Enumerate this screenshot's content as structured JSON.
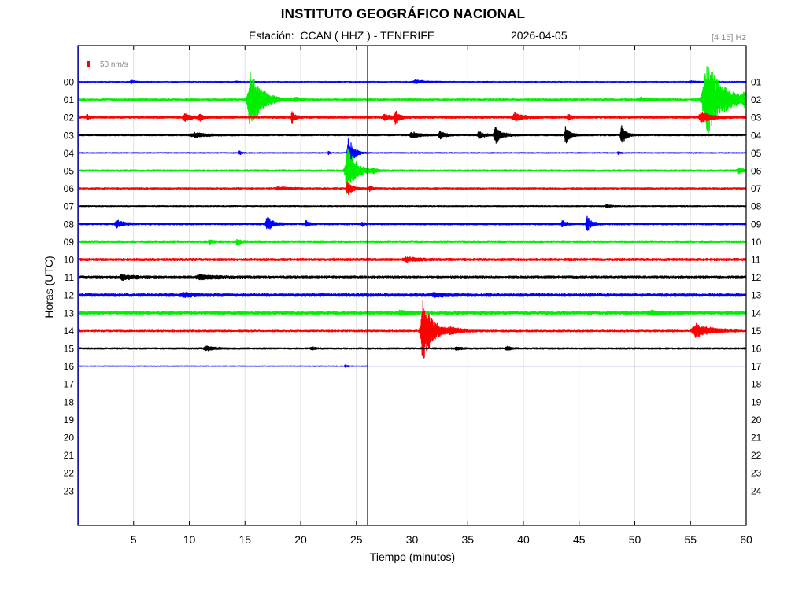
{
  "title": "INSTITUTO GEOGRÁFICO NACIONAL",
  "station_line": "Estación:  CCAN ( HHZ ) - TENERIFE",
  "date": "2026-04-05",
  "filter": "[4 15] Hz",
  "scale_label": "50 nm/s",
  "colors": {
    "blue": "#0000ff",
    "green": "#00ee00",
    "red": "#ff0000",
    "black": "#000000",
    "grid": "#e2e2e2",
    "cursor": "#1a1aa8",
    "scale": "#ff0000",
    "filter_text": "#8a8a8a"
  },
  "chart_data": {
    "type": "helicorder",
    "title": "INSTITUTO GEOGRÁFICO NACIONAL",
    "xlabel": "Tiempo (minutos)",
    "ylabel": "Horas (UTC)",
    "xlim": [
      0,
      60
    ],
    "x_ticks": [
      5,
      10,
      15,
      20,
      25,
      30,
      35,
      40,
      45,
      50,
      55,
      60
    ],
    "left_hour_labels": [
      "00",
      "01",
      "02",
      "03",
      "04",
      "05",
      "06",
      "07",
      "08",
      "09",
      "10",
      "11",
      "12",
      "13",
      "14",
      "15",
      "16",
      "17",
      "18",
      "19",
      "20",
      "21",
      "22",
      "23"
    ],
    "right_hour_labels": [
      "01",
      "02",
      "03",
      "04",
      "05",
      "06",
      "07",
      "08",
      "09",
      "10",
      "11",
      "12",
      "13",
      "14",
      "15",
      "16",
      "17",
      "18",
      "19",
      "20",
      "21",
      "22",
      "23",
      "24"
    ],
    "current_time_minutes": 26,
    "grid": true,
    "traces": [
      {
        "hour": 0,
        "color": "blue",
        "noise": 0.7,
        "end_minute": 60,
        "events": [
          {
            "t": 4.8,
            "amp": 2.5,
            "dur": 0.6
          },
          {
            "t": 14.2,
            "amp": 1.5,
            "dur": 0.4
          },
          {
            "t": 30.3,
            "amp": 2.5,
            "dur": 1.5
          },
          {
            "t": 55.0,
            "amp": 1.5,
            "dur": 0.8
          }
        ]
      },
      {
        "hour": 1,
        "color": "green",
        "noise": 1.1,
        "end_minute": 60,
        "events": [
          {
            "t": 15.5,
            "amp": 38,
            "dur": 1.6
          },
          {
            "t": 19.5,
            "amp": 3,
            "dur": 0.8
          },
          {
            "t": 50.5,
            "amp": 3,
            "dur": 1.2
          },
          {
            "t": 56.5,
            "amp": 48,
            "dur": 2.4
          },
          {
            "t": 59.8,
            "amp": 8,
            "dur": 0.6
          }
        ]
      },
      {
        "hour": 2,
        "color": "red",
        "noise": 1.2,
        "end_minute": 60,
        "events": [
          {
            "t": 0.8,
            "amp": 4,
            "dur": 0.3
          },
          {
            "t": 9.6,
            "amp": 5,
            "dur": 1.0
          },
          {
            "t": 10.9,
            "amp": 5,
            "dur": 0.5
          },
          {
            "t": 19.2,
            "amp": 9,
            "dur": 0.5
          },
          {
            "t": 27.5,
            "amp": 4,
            "dur": 1.0
          },
          {
            "t": 28.5,
            "amp": 10,
            "dur": 0.5
          },
          {
            "t": 39.2,
            "amp": 6,
            "dur": 1.2
          },
          {
            "t": 44.0,
            "amp": 6,
            "dur": 0.4
          },
          {
            "t": 56.0,
            "amp": 7,
            "dur": 1.5
          }
        ]
      },
      {
        "hour": 3,
        "color": "black",
        "noise": 1.0,
        "end_minute": 60,
        "events": [
          {
            "t": 10.5,
            "amp": 3,
            "dur": 2.0
          },
          {
            "t": 30.0,
            "amp": 4,
            "dur": 1.2
          },
          {
            "t": 32.5,
            "amp": 5,
            "dur": 0.8
          },
          {
            "t": 36.0,
            "amp": 5,
            "dur": 0.8
          },
          {
            "t": 37.5,
            "amp": 11,
            "dur": 0.9
          },
          {
            "t": 43.8,
            "amp": 12,
            "dur": 0.6
          },
          {
            "t": 48.8,
            "amp": 13,
            "dur": 0.6
          }
        ]
      },
      {
        "hour": 4,
        "color": "blue",
        "noise": 0.7,
        "end_minute": 60,
        "events": [
          {
            "t": 14.5,
            "amp": 3,
            "dur": 0.3
          },
          {
            "t": 22.5,
            "amp": 3,
            "dur": 0.2
          },
          {
            "t": 24.3,
            "amp": 22,
            "dur": 0.7
          },
          {
            "t": 48.5,
            "amp": 2.5,
            "dur": 0.3
          }
        ]
      },
      {
        "hour": 5,
        "color": "green",
        "noise": 1.1,
        "end_minute": 60,
        "events": [
          {
            "t": 24.2,
            "amp": 32,
            "dur": 1.2
          },
          {
            "t": 26.5,
            "amp": 3,
            "dur": 0.4
          },
          {
            "t": 59.3,
            "amp": 4,
            "dur": 0.8
          }
        ]
      },
      {
        "hour": 6,
        "color": "red",
        "noise": 1.0,
        "end_minute": 60,
        "events": [
          {
            "t": 24.2,
            "amp": 10,
            "dur": 0.7
          },
          {
            "t": 26.2,
            "amp": 4,
            "dur": 0.4
          },
          {
            "t": 18.0,
            "amp": 2,
            "dur": 1.5
          }
        ]
      },
      {
        "hour": 7,
        "color": "black",
        "noise": 0.8,
        "end_minute": 60,
        "events": [
          {
            "t": 47.5,
            "amp": 2,
            "dur": 0.6
          }
        ]
      },
      {
        "hour": 8,
        "color": "blue",
        "noise": 1.2,
        "end_minute": 60,
        "events": [
          {
            "t": 3.5,
            "amp": 5,
            "dur": 0.9
          },
          {
            "t": 17.0,
            "amp": 9,
            "dur": 0.8
          },
          {
            "t": 20.5,
            "amp": 4,
            "dur": 0.4
          },
          {
            "t": 25.5,
            "amp": 3,
            "dur": 0.3
          },
          {
            "t": 43.5,
            "amp": 4,
            "dur": 0.5
          },
          {
            "t": 45.7,
            "amp": 10,
            "dur": 0.6
          }
        ]
      },
      {
        "hour": 9,
        "color": "green",
        "noise": 1.3,
        "end_minute": 60,
        "events": [
          {
            "t": 11.8,
            "amp": 3,
            "dur": 0.4
          },
          {
            "t": 14.3,
            "amp": 4,
            "dur": 0.5
          }
        ]
      },
      {
        "hour": 10,
        "color": "red",
        "noise": 1.4,
        "end_minute": 60,
        "events": [
          {
            "t": 29.5,
            "amp": 3,
            "dur": 1.6
          }
        ]
      },
      {
        "hour": 11,
        "color": "black",
        "noise": 1.6,
        "end_minute": 60,
        "events": [
          {
            "t": 4.0,
            "amp": 3,
            "dur": 1.2
          },
          {
            "t": 11.0,
            "amp": 2.5,
            "dur": 2.0
          }
        ]
      },
      {
        "hour": 12,
        "color": "blue",
        "noise": 1.6,
        "end_minute": 60,
        "events": [
          {
            "t": 9.5,
            "amp": 2.5,
            "dur": 1.8
          },
          {
            "t": 32.0,
            "amp": 2.5,
            "dur": 1.5
          }
        ]
      },
      {
        "hour": 13,
        "color": "green",
        "noise": 1.6,
        "end_minute": 60,
        "events": [
          {
            "t": 29.0,
            "amp": 2.5,
            "dur": 1.5
          },
          {
            "t": 51.5,
            "amp": 2.5,
            "dur": 1.5
          }
        ]
      },
      {
        "hour": 14,
        "color": "red",
        "noise": 1.5,
        "end_minute": 60,
        "events": [
          {
            "t": 31.0,
            "amp": 42,
            "dur": 1.3
          },
          {
            "t": 33.5,
            "amp": 3,
            "dur": 1.5
          },
          {
            "t": 55.5,
            "amp": 8,
            "dur": 2.0
          }
        ]
      },
      {
        "hour": 15,
        "color": "black",
        "noise": 1.0,
        "end_minute": 60,
        "events": [
          {
            "t": 11.5,
            "amp": 3,
            "dur": 1.2
          },
          {
            "t": 21.0,
            "amp": 2,
            "dur": 0.6
          },
          {
            "t": 34.0,
            "amp": 2,
            "dur": 0.8
          },
          {
            "t": 38.5,
            "amp": 3,
            "dur": 0.6
          }
        ]
      },
      {
        "hour": 16,
        "color": "blue",
        "noise": 0.6,
        "end_minute": 26,
        "events": [
          {
            "t": 24.0,
            "amp": 2,
            "dur": 0.4
          }
        ]
      }
    ]
  }
}
